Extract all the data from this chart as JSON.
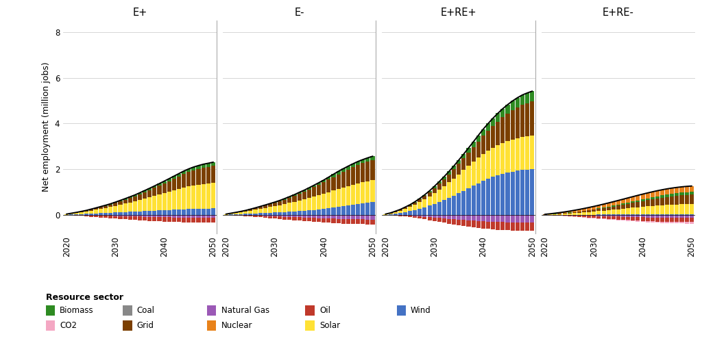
{
  "scenarios": [
    "E+",
    "E-",
    "E+RE+",
    "E+RE-"
  ],
  "years": [
    2020,
    2021,
    2022,
    2023,
    2024,
    2025,
    2026,
    2027,
    2028,
    2029,
    2030,
    2031,
    2032,
    2033,
    2034,
    2035,
    2036,
    2037,
    2038,
    2039,
    2040,
    2041,
    2042,
    2043,
    2044,
    2045,
    2046,
    2047,
    2048,
    2049,
    2050
  ],
  "colors": {
    "Wind": "#4472C4",
    "Solar": "#FFE135",
    "Grid": "#7B3F00",
    "Biomass": "#2E8B22",
    "Coal": "#888888",
    "Natural Gas": "#9B59B6",
    "Oil": "#C0392B",
    "CO2": "#F4A7C3",
    "Nuclear": "#E8821A"
  },
  "data": {
    "E+": {
      "Wind": [
        0.01,
        0.02,
        0.03,
        0.04,
        0.05,
        0.06,
        0.07,
        0.08,
        0.09,
        0.1,
        0.11,
        0.12,
        0.13,
        0.14,
        0.15,
        0.16,
        0.17,
        0.18,
        0.19,
        0.2,
        0.21,
        0.22,
        0.23,
        0.24,
        0.25,
        0.26,
        0.27,
        0.27,
        0.28,
        0.28,
        0.29
      ],
      "Solar": [
        0.02,
        0.04,
        0.06,
        0.08,
        0.1,
        0.13,
        0.16,
        0.19,
        0.22,
        0.25,
        0.29,
        0.33,
        0.37,
        0.41,
        0.45,
        0.5,
        0.55,
        0.6,
        0.65,
        0.7,
        0.75,
        0.8,
        0.85,
        0.9,
        0.95,
        0.99,
        1.02,
        1.05,
        1.07,
        1.09,
        1.11
      ],
      "Grid": [
        0.005,
        0.01,
        0.015,
        0.025,
        0.035,
        0.048,
        0.06,
        0.075,
        0.09,
        0.108,
        0.127,
        0.148,
        0.17,
        0.194,
        0.22,
        0.248,
        0.278,
        0.31,
        0.344,
        0.38,
        0.418,
        0.458,
        0.5,
        0.542,
        0.584,
        0.624,
        0.66,
        0.692,
        0.718,
        0.738,
        0.752
      ],
      "Biomass": [
        0.003,
        0.005,
        0.007,
        0.009,
        0.012,
        0.015,
        0.018,
        0.022,
        0.026,
        0.03,
        0.034,
        0.039,
        0.044,
        0.05,
        0.056,
        0.063,
        0.07,
        0.077,
        0.085,
        0.093,
        0.101,
        0.11,
        0.119,
        0.127,
        0.135,
        0.14,
        0.145,
        0.148,
        0.151,
        0.153,
        0.155
      ],
      "Coal": [
        0.0,
        0.0,
        0.0,
        0.0,
        0.0,
        0.0,
        0.0,
        0.0,
        0.0,
        0.0,
        0.0,
        0.0,
        0.0,
        0.0,
        0.0,
        0.0,
        0.0,
        0.0,
        0.0,
        0.0,
        0.0,
        0.0,
        0.0,
        0.0,
        0.0,
        0.0,
        0.0,
        0.0,
        0.0,
        0.0,
        0.0
      ],
      "Natural Gas": [
        0.0,
        -0.005,
        -0.01,
        -0.015,
        -0.02,
        -0.025,
        -0.03,
        -0.035,
        -0.04,
        -0.045,
        -0.05,
        -0.055,
        -0.06,
        -0.065,
        -0.07,
        -0.075,
        -0.08,
        -0.085,
        -0.09,
        -0.095,
        -0.1,
        -0.105,
        -0.108,
        -0.112,
        -0.115,
        -0.117,
        -0.119,
        -0.121,
        -0.122,
        -0.123,
        -0.124
      ],
      "Oil": [
        0.0,
        -0.01,
        -0.02,
        -0.03,
        -0.04,
        -0.052,
        -0.064,
        -0.076,
        -0.088,
        -0.1,
        -0.112,
        -0.122,
        -0.132,
        -0.142,
        -0.15,
        -0.158,
        -0.165,
        -0.172,
        -0.178,
        -0.183,
        -0.188,
        -0.192,
        -0.196,
        -0.2,
        -0.203,
        -0.206,
        -0.208,
        -0.21,
        -0.212,
        -0.213,
        -0.214
      ],
      "CO2": [
        0.0,
        0.0,
        0.0,
        0.0,
        0.0,
        0.0,
        0.0,
        0.0,
        0.0,
        0.0,
        0.0,
        0.0,
        0.0,
        0.0,
        0.0,
        0.0,
        0.0,
        0.0,
        0.0,
        0.0,
        0.0,
        0.0,
        0.0,
        0.0,
        0.0,
        0.0,
        0.0,
        0.0,
        0.0,
        0.0,
        0.0
      ],
      "Nuclear": [
        0.0,
        0.0,
        0.0,
        0.0,
        0.0,
        0.0,
        0.0,
        0.0,
        0.0,
        0.0,
        0.0,
        0.0,
        0.0,
        0.0,
        0.0,
        0.0,
        0.0,
        0.0,
        0.0,
        0.0,
        0.0,
        0.0,
        0.0,
        0.0,
        0.0,
        0.0,
        0.0,
        0.0,
        0.0,
        0.0,
        0.0
      ]
    },
    "E-": {
      "Wind": [
        0.01,
        0.02,
        0.03,
        0.04,
        0.05,
        0.06,
        0.07,
        0.08,
        0.09,
        0.1,
        0.11,
        0.12,
        0.13,
        0.14,
        0.15,
        0.17,
        0.18,
        0.2,
        0.22,
        0.24,
        0.26,
        0.29,
        0.32,
        0.35,
        0.38,
        0.41,
        0.44,
        0.47,
        0.5,
        0.53,
        0.56
      ],
      "Solar": [
        0.02,
        0.04,
        0.06,
        0.08,
        0.1,
        0.13,
        0.16,
        0.19,
        0.22,
        0.25,
        0.28,
        0.31,
        0.35,
        0.39,
        0.43,
        0.47,
        0.51,
        0.55,
        0.59,
        0.63,
        0.67,
        0.71,
        0.75,
        0.79,
        0.82,
        0.85,
        0.88,
        0.91,
        0.93,
        0.95,
        0.97
      ],
      "Grid": [
        0.005,
        0.01,
        0.016,
        0.025,
        0.036,
        0.049,
        0.063,
        0.08,
        0.098,
        0.118,
        0.14,
        0.165,
        0.192,
        0.221,
        0.253,
        0.287,
        0.323,
        0.362,
        0.403,
        0.447,
        0.493,
        0.541,
        0.59,
        0.638,
        0.685,
        0.729,
        0.768,
        0.802,
        0.831,
        0.854,
        0.871
      ],
      "Biomass": [
        0.003,
        0.005,
        0.007,
        0.009,
        0.012,
        0.015,
        0.018,
        0.022,
        0.026,
        0.03,
        0.034,
        0.039,
        0.044,
        0.05,
        0.056,
        0.063,
        0.07,
        0.078,
        0.086,
        0.094,
        0.103,
        0.112,
        0.121,
        0.13,
        0.138,
        0.145,
        0.151,
        0.156,
        0.16,
        0.163,
        0.165
      ],
      "Coal": [
        0.0,
        0.0,
        0.0,
        0.0,
        0.0,
        0.0,
        0.0,
        0.0,
        0.0,
        0.0,
        0.0,
        0.0,
        0.0,
        0.0,
        0.0,
        0.0,
        0.0,
        0.0,
        0.0,
        0.0,
        0.0,
        0.0,
        0.0,
        0.0,
        0.0,
        0.0,
        0.0,
        0.0,
        0.0,
        0.0,
        0.0
      ],
      "Natural Gas": [
        0.0,
        -0.005,
        -0.01,
        -0.016,
        -0.022,
        -0.028,
        -0.034,
        -0.04,
        -0.047,
        -0.054,
        -0.061,
        -0.069,
        -0.077,
        -0.085,
        -0.093,
        -0.102,
        -0.111,
        -0.12,
        -0.129,
        -0.138,
        -0.147,
        -0.156,
        -0.164,
        -0.171,
        -0.177,
        -0.183,
        -0.187,
        -0.191,
        -0.195,
        -0.198,
        -0.2
      ],
      "Oil": [
        0.0,
        -0.008,
        -0.016,
        -0.025,
        -0.034,
        -0.044,
        -0.054,
        -0.064,
        -0.075,
        -0.086,
        -0.097,
        -0.108,
        -0.119,
        -0.129,
        -0.138,
        -0.147,
        -0.155,
        -0.163,
        -0.17,
        -0.176,
        -0.182,
        -0.187,
        -0.192,
        -0.196,
        -0.2,
        -0.203,
        -0.206,
        -0.208,
        -0.21,
        -0.212,
        -0.213
      ],
      "CO2": [
        0.0,
        0.0,
        0.0,
        0.0,
        0.0,
        0.0,
        0.0,
        0.0,
        0.0,
        0.0,
        0.0,
        0.0,
        0.0,
        0.0,
        0.0,
        0.0,
        0.0,
        0.0,
        0.0,
        0.0,
        0.0,
        0.0,
        0.0,
        0.0,
        0.0,
        0.0,
        0.0,
        0.0,
        0.0,
        0.0,
        0.0
      ],
      "Nuclear": [
        0.0,
        0.0,
        0.0,
        0.0,
        0.0,
        0.0,
        0.0,
        0.0,
        0.0,
        0.0,
        0.0,
        0.0,
        0.0,
        0.0,
        0.0,
        0.0,
        0.0,
        0.0,
        0.0,
        0.0,
        0.0,
        0.0,
        0.0,
        0.0,
        0.0,
        0.0,
        0.0,
        0.0,
        0.0,
        0.0,
        0.0
      ]
    },
    "E+RE+": {
      "Wind": [
        0.01,
        0.03,
        0.06,
        0.09,
        0.13,
        0.17,
        0.22,
        0.28,
        0.34,
        0.41,
        0.49,
        0.57,
        0.66,
        0.75,
        0.85,
        0.95,
        1.06,
        1.17,
        1.28,
        1.39,
        1.5,
        1.59,
        1.67,
        1.74,
        1.8,
        1.85,
        1.89,
        1.93,
        1.96,
        1.98,
        2.0
      ],
      "Solar": [
        0.02,
        0.04,
        0.07,
        0.1,
        0.14,
        0.18,
        0.23,
        0.28,
        0.34,
        0.4,
        0.47,
        0.54,
        0.61,
        0.68,
        0.75,
        0.83,
        0.9,
        0.97,
        1.04,
        1.11,
        1.17,
        1.22,
        1.27,
        1.31,
        1.35,
        1.38,
        1.41,
        1.43,
        1.45,
        1.46,
        1.47
      ],
      "Grid": [
        0.005,
        0.012,
        0.022,
        0.035,
        0.05,
        0.068,
        0.09,
        0.115,
        0.144,
        0.176,
        0.212,
        0.252,
        0.296,
        0.344,
        0.396,
        0.452,
        0.512,
        0.576,
        0.644,
        0.716,
        0.792,
        0.871,
        0.952,
        1.034,
        1.116,
        1.196,
        1.272,
        1.341,
        1.402,
        1.453,
        1.495
      ],
      "Biomass": [
        0.003,
        0.006,
        0.01,
        0.015,
        0.021,
        0.028,
        0.036,
        0.045,
        0.056,
        0.068,
        0.081,
        0.096,
        0.112,
        0.13,
        0.149,
        0.17,
        0.192,
        0.215,
        0.24,
        0.265,
        0.291,
        0.316,
        0.34,
        0.362,
        0.382,
        0.399,
        0.413,
        0.425,
        0.434,
        0.441,
        0.445
      ],
      "Coal": [
        0.0,
        0.0,
        0.0,
        0.0,
        0.0,
        0.0,
        0.0,
        0.0,
        0.0,
        0.0,
        0.0,
        0.0,
        0.0,
        0.0,
        0.0,
        0.0,
        0.0,
        0.0,
        0.0,
        0.0,
        0.0,
        0.0,
        0.0,
        0.0,
        0.0,
        0.0,
        0.0,
        0.0,
        0.0,
        0.0,
        0.0
      ],
      "Natural Gas": [
        0.0,
        -0.005,
        -0.012,
        -0.02,
        -0.03,
        -0.041,
        -0.054,
        -0.068,
        -0.083,
        -0.099,
        -0.116,
        -0.133,
        -0.151,
        -0.169,
        -0.187,
        -0.204,
        -0.221,
        -0.237,
        -0.252,
        -0.266,
        -0.278,
        -0.289,
        -0.298,
        -0.306,
        -0.313,
        -0.318,
        -0.322,
        -0.325,
        -0.328,
        -0.33,
        -0.331
      ],
      "Oil": [
        0.0,
        -0.008,
        -0.018,
        -0.03,
        -0.043,
        -0.057,
        -0.073,
        -0.09,
        -0.108,
        -0.127,
        -0.147,
        -0.167,
        -0.187,
        -0.207,
        -0.226,
        -0.244,
        -0.261,
        -0.277,
        -0.291,
        -0.304,
        -0.315,
        -0.325,
        -0.333,
        -0.34,
        -0.346,
        -0.351,
        -0.355,
        -0.358,
        -0.36,
        -0.362,
        -0.363
      ],
      "CO2": [
        0.0,
        0.0,
        0.0,
        0.0,
        0.0,
        0.0,
        0.0,
        0.0,
        0.0,
        0.0,
        0.0,
        0.0,
        0.0,
        0.0,
        0.0,
        0.0,
        0.0,
        0.0,
        0.0,
        0.0,
        0.0,
        0.0,
        0.0,
        0.0,
        0.0,
        0.0,
        0.0,
        0.0,
        0.0,
        0.0,
        0.0
      ],
      "Nuclear": [
        0.0,
        0.0,
        0.0,
        0.0,
        0.0,
        0.0,
        0.0,
        0.0,
        0.0,
        0.0,
        0.0,
        0.0,
        0.0,
        0.0,
        0.0,
        0.0,
        0.0,
        0.0,
        0.0,
        0.0,
        0.0,
        0.0,
        0.0,
        0.0,
        0.0,
        0.0,
        0.0,
        0.0,
        0.0,
        0.0,
        0.0
      ]
    },
    "E+RE-": {
      "Wind": [
        0.003,
        0.004,
        0.005,
        0.006,
        0.007,
        0.008,
        0.009,
        0.01,
        0.011,
        0.012,
        0.013,
        0.014,
        0.015,
        0.016,
        0.017,
        0.018,
        0.019,
        0.02,
        0.021,
        0.022,
        0.023,
        0.024,
        0.025,
        0.026,
        0.027,
        0.028,
        0.029,
        0.03,
        0.031,
        0.032,
        0.033
      ],
      "Solar": [
        0.01,
        0.018,
        0.027,
        0.037,
        0.048,
        0.06,
        0.074,
        0.088,
        0.103,
        0.119,
        0.136,
        0.154,
        0.173,
        0.192,
        0.212,
        0.233,
        0.253,
        0.274,
        0.294,
        0.314,
        0.333,
        0.351,
        0.368,
        0.384,
        0.398,
        0.411,
        0.422,
        0.431,
        0.439,
        0.445,
        0.45
      ],
      "Grid": [
        0.004,
        0.007,
        0.011,
        0.016,
        0.022,
        0.029,
        0.037,
        0.046,
        0.056,
        0.067,
        0.079,
        0.092,
        0.106,
        0.121,
        0.137,
        0.154,
        0.172,
        0.191,
        0.21,
        0.23,
        0.251,
        0.271,
        0.292,
        0.312,
        0.331,
        0.349,
        0.365,
        0.379,
        0.391,
        0.401,
        0.408
      ],
      "Biomass": [
        0.002,
        0.003,
        0.005,
        0.006,
        0.008,
        0.01,
        0.012,
        0.015,
        0.018,
        0.021,
        0.024,
        0.028,
        0.032,
        0.036,
        0.041,
        0.046,
        0.051,
        0.057,
        0.063,
        0.069,
        0.075,
        0.082,
        0.088,
        0.094,
        0.1,
        0.105,
        0.11,
        0.114,
        0.118,
        0.121,
        0.123
      ],
      "Coal": [
        0.0,
        0.0,
        0.0,
        0.0,
        0.0,
        0.0,
        0.0,
        0.0,
        0.0,
        0.0,
        0.0,
        0.0,
        0.0,
        0.0,
        0.0,
        0.0,
        0.0,
        0.0,
        0.0,
        0.0,
        0.0,
        0.0,
        0.0,
        0.0,
        0.0,
        0.0,
        0.0,
        0.0,
        0.0,
        0.0,
        0.0
      ],
      "Natural Gas": [
        0.0,
        -0.003,
        -0.006,
        -0.01,
        -0.014,
        -0.018,
        -0.022,
        -0.027,
        -0.032,
        -0.037,
        -0.042,
        -0.048,
        -0.054,
        -0.06,
        -0.066,
        -0.072,
        -0.079,
        -0.085,
        -0.091,
        -0.097,
        -0.102,
        -0.107,
        -0.111,
        -0.115,
        -0.118,
        -0.12,
        -0.122,
        -0.124,
        -0.125,
        -0.126,
        -0.127
      ],
      "Oil": [
        0.0,
        -0.006,
        -0.013,
        -0.02,
        -0.028,
        -0.036,
        -0.045,
        -0.054,
        -0.063,
        -0.073,
        -0.082,
        -0.091,
        -0.1,
        -0.109,
        -0.117,
        -0.125,
        -0.133,
        -0.14,
        -0.147,
        -0.153,
        -0.158,
        -0.163,
        -0.167,
        -0.171,
        -0.174,
        -0.177,
        -0.179,
        -0.181,
        -0.182,
        -0.183,
        -0.184
      ],
      "CO2": [
        -0.01,
        -0.012,
        -0.014,
        -0.016,
        -0.018,
        -0.02,
        -0.022,
        -0.024,
        -0.026,
        -0.028,
        -0.03,
        -0.032,
        -0.034,
        -0.036,
        -0.038,
        -0.04,
        -0.042,
        -0.044,
        -0.046,
        -0.048,
        -0.05,
        -0.052,
        -0.054,
        -0.056,
        -0.058,
        -0.06,
        -0.062,
        -0.064,
        -0.066,
        -0.068,
        -0.07
      ],
      "Nuclear": [
        0.01,
        0.018,
        0.027,
        0.037,
        0.048,
        0.059,
        0.071,
        0.083,
        0.096,
        0.109,
        0.122,
        0.135,
        0.148,
        0.161,
        0.173,
        0.184,
        0.195,
        0.205,
        0.214,
        0.222,
        0.229,
        0.235,
        0.24,
        0.244,
        0.247,
        0.249,
        0.25,
        0.251,
        0.251,
        0.251,
        0.251
      ]
    }
  },
  "ylim": [
    -0.8,
    8.5
  ],
  "yticks": [
    0,
    2,
    4,
    6,
    8
  ],
  "ylabel": "Net employment (million jobs)",
  "background_color": "#FFFFFF",
  "legend_title": "Resource sector",
  "positive_stack_order": [
    "Wind",
    "Solar",
    "Grid",
    "Biomass",
    "Coal",
    "Nuclear"
  ],
  "negative_stack_order": [
    "Natural Gas",
    "Oil",
    "CO2"
  ]
}
